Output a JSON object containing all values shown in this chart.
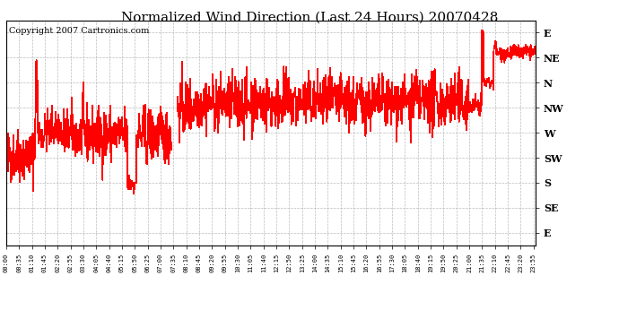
{
  "title": "Normalized Wind Direction (Last 24 Hours) 20070428",
  "copyright": "Copyright 2007 Cartronics.com",
  "line_color": "#ff0000",
  "background_color": "#ffffff",
  "plot_bg_color": "#ffffff",
  "grid_color": "#aaaaaa",
  "ytick_labels": [
    "E",
    "NE",
    "N",
    "NW",
    "W",
    "SW",
    "S",
    "SE",
    "E"
  ],
  "ytick_values": [
    9,
    8,
    7,
    6,
    5,
    4,
    3,
    2,
    1
  ],
  "ylim": [
    0.5,
    9.5
  ],
  "xtick_labels": [
    "00:00",
    "00:35",
    "01:10",
    "01:45",
    "02:20",
    "02:55",
    "03:30",
    "04:05",
    "04:40",
    "05:15",
    "05:50",
    "06:25",
    "07:00",
    "07:35",
    "08:10",
    "08:45",
    "09:20",
    "09:55",
    "10:30",
    "11:05",
    "11:40",
    "12:15",
    "12:50",
    "13:25",
    "14:00",
    "14:35",
    "15:10",
    "15:45",
    "16:20",
    "16:55",
    "17:30",
    "18:05",
    "18:40",
    "19:15",
    "19:50",
    "20:25",
    "21:00",
    "21:35",
    "22:10",
    "22:45",
    "23:20",
    "23:55"
  ],
  "seed": 42,
  "title_fontsize": 11,
  "copyright_fontsize": 7
}
